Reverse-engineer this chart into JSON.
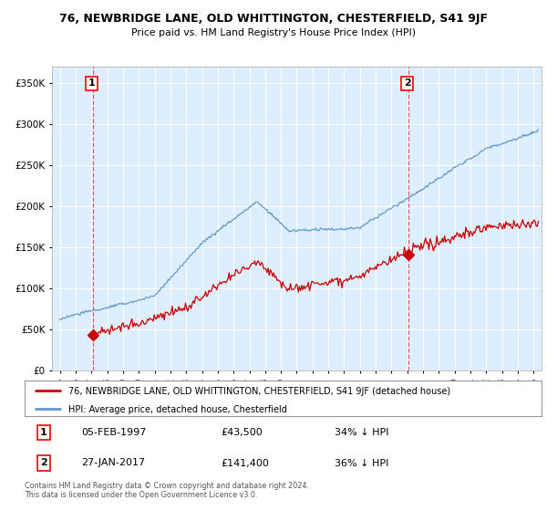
{
  "title": "76, NEWBRIDGE LANE, OLD WHITTINGTON, CHESTERFIELD, S41 9JF",
  "subtitle": "Price paid vs. HM Land Registry's House Price Index (HPI)",
  "property_label": "76, NEWBRIDGE LANE, OLD WHITTINGTON, CHESTERFIELD, S41 9JF (detached house)",
  "hpi_label": "HPI: Average price, detached house, Chesterfield",
  "annotation1": {
    "label": "1",
    "date": "05-FEB-1997",
    "price": "£43,500",
    "hpi_diff": "34% ↓ HPI"
  },
  "annotation2": {
    "label": "2",
    "date": "27-JAN-2017",
    "price": "£141,400",
    "hpi_diff": "36% ↓ HPI"
  },
  "property_color": "#cc0000",
  "hpi_color": "#6699cc",
  "background_color": "#ddeeff",
  "ylim": [
    0,
    370000
  ],
  "xlim_start": 1994.5,
  "xlim_end": 2025.5,
  "footer": "Contains HM Land Registry data © Crown copyright and database right 2024.\nThis data is licensed under the Open Government Licence v3.0.",
  "sale1_year": 1997.09,
  "sale1_price": 43500,
  "sale2_year": 2017.07,
  "sale2_price": 141400,
  "yticks": [
    0,
    50000,
    100000,
    150000,
    200000,
    250000,
    300000,
    350000
  ],
  "xtick_years": [
    1995,
    1996,
    1997,
    1998,
    1999,
    2000,
    2001,
    2002,
    2003,
    2004,
    2005,
    2006,
    2007,
    2008,
    2009,
    2010,
    2011,
    2012,
    2013,
    2014,
    2015,
    2016,
    2017,
    2018,
    2019,
    2020,
    2021,
    2022,
    2023,
    2024,
    2025
  ]
}
